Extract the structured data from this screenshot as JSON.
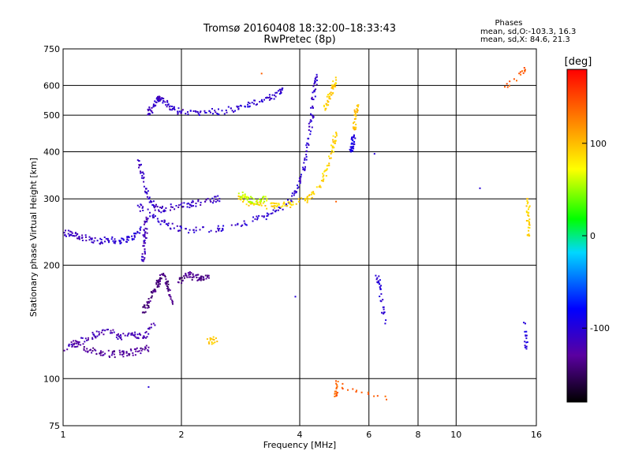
{
  "chart_data": {
    "type": "scatter",
    "title": "Tromsø 20160408 18:32:00–18:33:43",
    "subtitle": "RwPretec (8p)",
    "xlabel": "Frequency [MHz]",
    "ylabel": "Stationary phase Virtual Height [km]",
    "x_scale": "log",
    "y_scale": "log",
    "xlim": [
      1,
      16
    ],
    "ylim": [
      75,
      750
    ],
    "x_ticks": [
      1,
      2,
      4,
      6,
      8,
      10,
      16
    ],
    "y_ticks": [
      75,
      100,
      200,
      300,
      400,
      500,
      600,
      750
    ],
    "grid": true,
    "legend": {
      "title": "Phases",
      "lines": [
        "mean, sd,O:-103.3, 16.3",
        "mean, sd,X:  84.6, 21.3"
      ]
    },
    "colorbar": {
      "label": "[deg]",
      "ticks": [
        100,
        0,
        -100
      ],
      "range": [
        -180,
        180
      ],
      "colors": [
        "#000000",
        "#5a00a0",
        "#0000ff",
        "#00d8ff",
        "#00ff00",
        "#ffff00",
        "#ff8000",
        "#ff0000"
      ]
    },
    "traces": [
      {
        "phase": -105,
        "points": [
          [
            2.05,
            505
          ],
          [
            2.3,
            508
          ],
          [
            2.6,
            515
          ],
          [
            2.9,
            528
          ],
          [
            3.2,
            545
          ],
          [
            3.45,
            565
          ],
          [
            3.6,
            585
          ]
        ]
      },
      {
        "phase": -110,
        "points": [
          [
            1.65,
            505
          ],
          [
            1.7,
            530
          ],
          [
            1.75,
            555
          ],
          [
            1.8,
            545
          ],
          [
            1.9,
            520
          ],
          [
            2.0,
            508
          ]
        ]
      },
      {
        "phase": -105,
        "points": [
          [
            1.55,
            288
          ],
          [
            1.7,
            268
          ],
          [
            1.85,
            255
          ],
          [
            2.1,
            248
          ],
          [
            2.5,
            250
          ],
          [
            2.9,
            258
          ],
          [
            3.3,
            270
          ],
          [
            3.7,
            290
          ],
          [
            3.95,
            320
          ],
          [
            4.1,
            360
          ],
          [
            4.2,
            420
          ],
          [
            4.3,
            500
          ],
          [
            4.35,
            580
          ],
          [
            4.4,
            630
          ]
        ]
      },
      {
        "phase": -110,
        "points": [
          [
            1.55,
            380
          ],
          [
            1.6,
            340
          ],
          [
            1.65,
            300
          ],
          [
            1.75,
            280
          ],
          [
            1.9,
            285
          ],
          [
            2.1,
            290
          ],
          [
            2.3,
            295
          ],
          [
            2.5,
            300
          ]
        ]
      },
      {
        "phase": -100,
        "points": [
          [
            1.3,
            235
          ],
          [
            1.4,
            232
          ],
          [
            1.5,
            235
          ],
          [
            1.57,
            250
          ]
        ]
      },
      {
        "phase": -112,
        "points": [
          [
            1.0,
            242
          ],
          [
            1.05,
            245
          ],
          [
            1.1,
            238
          ],
          [
            1.2,
            232
          ],
          [
            1.3,
            233
          ]
        ]
      },
      {
        "phase": -115,
        "points": [
          [
            1.6,
            205
          ],
          [
            1.6,
            225
          ],
          [
            1.62,
            245
          ],
          [
            1.63,
            265
          ]
        ]
      },
      {
        "phase": 90,
        "points": [
          [
            2.8,
            300
          ],
          [
            3.0,
            292
          ],
          [
            3.2,
            288
          ],
          [
            3.5,
            286
          ],
          [
            3.8,
            290
          ],
          [
            4.2,
            300
          ],
          [
            4.5,
            325
          ],
          [
            4.7,
            360
          ],
          [
            4.85,
            410
          ],
          [
            4.95,
            450
          ]
        ]
      },
      {
        "phase": 95,
        "points": [
          [
            4.65,
            520
          ],
          [
            4.75,
            560
          ],
          [
            4.85,
            590
          ],
          [
            4.95,
            620
          ]
        ]
      },
      {
        "phase": 60,
        "points": [
          [
            2.8,
            310
          ],
          [
            2.95,
            300
          ],
          [
            3.1,
            295
          ],
          [
            3.3,
            300
          ]
        ]
      },
      {
        "phase": 100,
        "points": [
          [
            5.5,
            460
          ],
          [
            5.55,
            500
          ],
          [
            5.6,
            530
          ]
        ]
      },
      {
        "phase": -95,
        "points": [
          [
            5.4,
            400
          ],
          [
            5.45,
            420
          ],
          [
            5.5,
            440
          ]
        ]
      },
      {
        "phase": -120,
        "points": [
          [
            1.0,
            120
          ],
          [
            1.1,
            125
          ],
          [
            1.2,
            130
          ],
          [
            1.3,
            135
          ],
          [
            1.4,
            128
          ],
          [
            1.5,
            132
          ],
          [
            1.6,
            128
          ],
          [
            1.7,
            140
          ]
        ]
      },
      {
        "phase": -130,
        "points": [
          [
            1.05,
            125
          ],
          [
            1.15,
            120
          ],
          [
            1.25,
            117
          ],
          [
            1.35,
            116
          ],
          [
            1.45,
            117
          ],
          [
            1.55,
            118
          ],
          [
            1.65,
            121
          ]
        ]
      },
      {
        "phase": -140,
        "points": [
          [
            1.6,
            150
          ],
          [
            1.65,
            160
          ],
          [
            1.7,
            170
          ],
          [
            1.75,
            180
          ],
          [
            1.8,
            190
          ],
          [
            1.85,
            175
          ],
          [
            1.9,
            160
          ]
        ]
      },
      {
        "phase": -135,
        "points": [
          [
            1.97,
            180
          ],
          [
            2.05,
            190
          ],
          [
            2.15,
            186
          ],
          [
            2.25,
            184
          ],
          [
            2.35,
            185
          ]
        ]
      },
      {
        "phase": 95,
        "points": [
          [
            2.35,
            125
          ],
          [
            2.45,
            128
          ]
        ]
      },
      {
        "phase": 90,
        "points": [
          [
            15.2,
            240
          ],
          [
            15.3,
            270
          ],
          [
            15.2,
            300
          ]
        ]
      },
      {
        "phase": -100,
        "points": [
          [
            15.0,
            140
          ],
          [
            15.1,
            120
          ],
          [
            6.3,
            185
          ],
          [
            6.4,
            175
          ],
          [
            6.6,
            140
          ],
          [
            6.2,
            395
          ],
          [
            11.5,
            320
          ],
          [
            3.9,
            165
          ],
          [
            1.65,
            95
          ]
        ]
      },
      {
        "phase": 140,
        "points": [
          [
            6.65,
            88
          ],
          [
            4.95,
            97
          ],
          [
            4.95,
            90
          ],
          [
            3.2,
            645
          ],
          [
            15.0,
            660
          ],
          [
            13.3,
            595
          ],
          [
            4.95,
            295
          ]
        ]
      }
    ]
  }
}
